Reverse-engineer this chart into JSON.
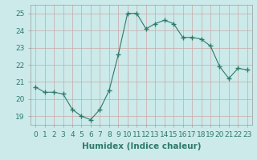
{
  "x": [
    0,
    1,
    2,
    3,
    4,
    5,
    6,
    7,
    8,
    9,
    10,
    11,
    12,
    13,
    14,
    15,
    16,
    17,
    18,
    19,
    20,
    21,
    22,
    23
  ],
  "y": [
    20.7,
    20.4,
    20.4,
    20.3,
    19.4,
    19.0,
    18.8,
    19.4,
    20.5,
    22.6,
    25.0,
    25.0,
    24.1,
    24.4,
    24.6,
    24.4,
    23.6,
    23.6,
    23.5,
    23.1,
    21.9,
    21.2,
    21.8,
    21.7
  ],
  "line_color": "#2d7a6a",
  "marker": "+",
  "marker_size": 4,
  "bg_color": "#cceaea",
  "grid_color": "#c8a8a8",
  "xlabel": "Humidex (Indice chaleur)",
  "ylim": [
    18.5,
    25.5
  ],
  "xlim": [
    -0.5,
    23.5
  ],
  "yticks": [
    19,
    20,
    21,
    22,
    23,
    24,
    25
  ],
  "xticks": [
    0,
    1,
    2,
    3,
    4,
    5,
    6,
    7,
    8,
    9,
    10,
    11,
    12,
    13,
    14,
    15,
    16,
    17,
    18,
    19,
    20,
    21,
    22,
    23
  ],
  "font_size": 6.5,
  "label_font_size": 7.5,
  "spine_color": "#999999",
  "tick_color": "#2d7a6a"
}
